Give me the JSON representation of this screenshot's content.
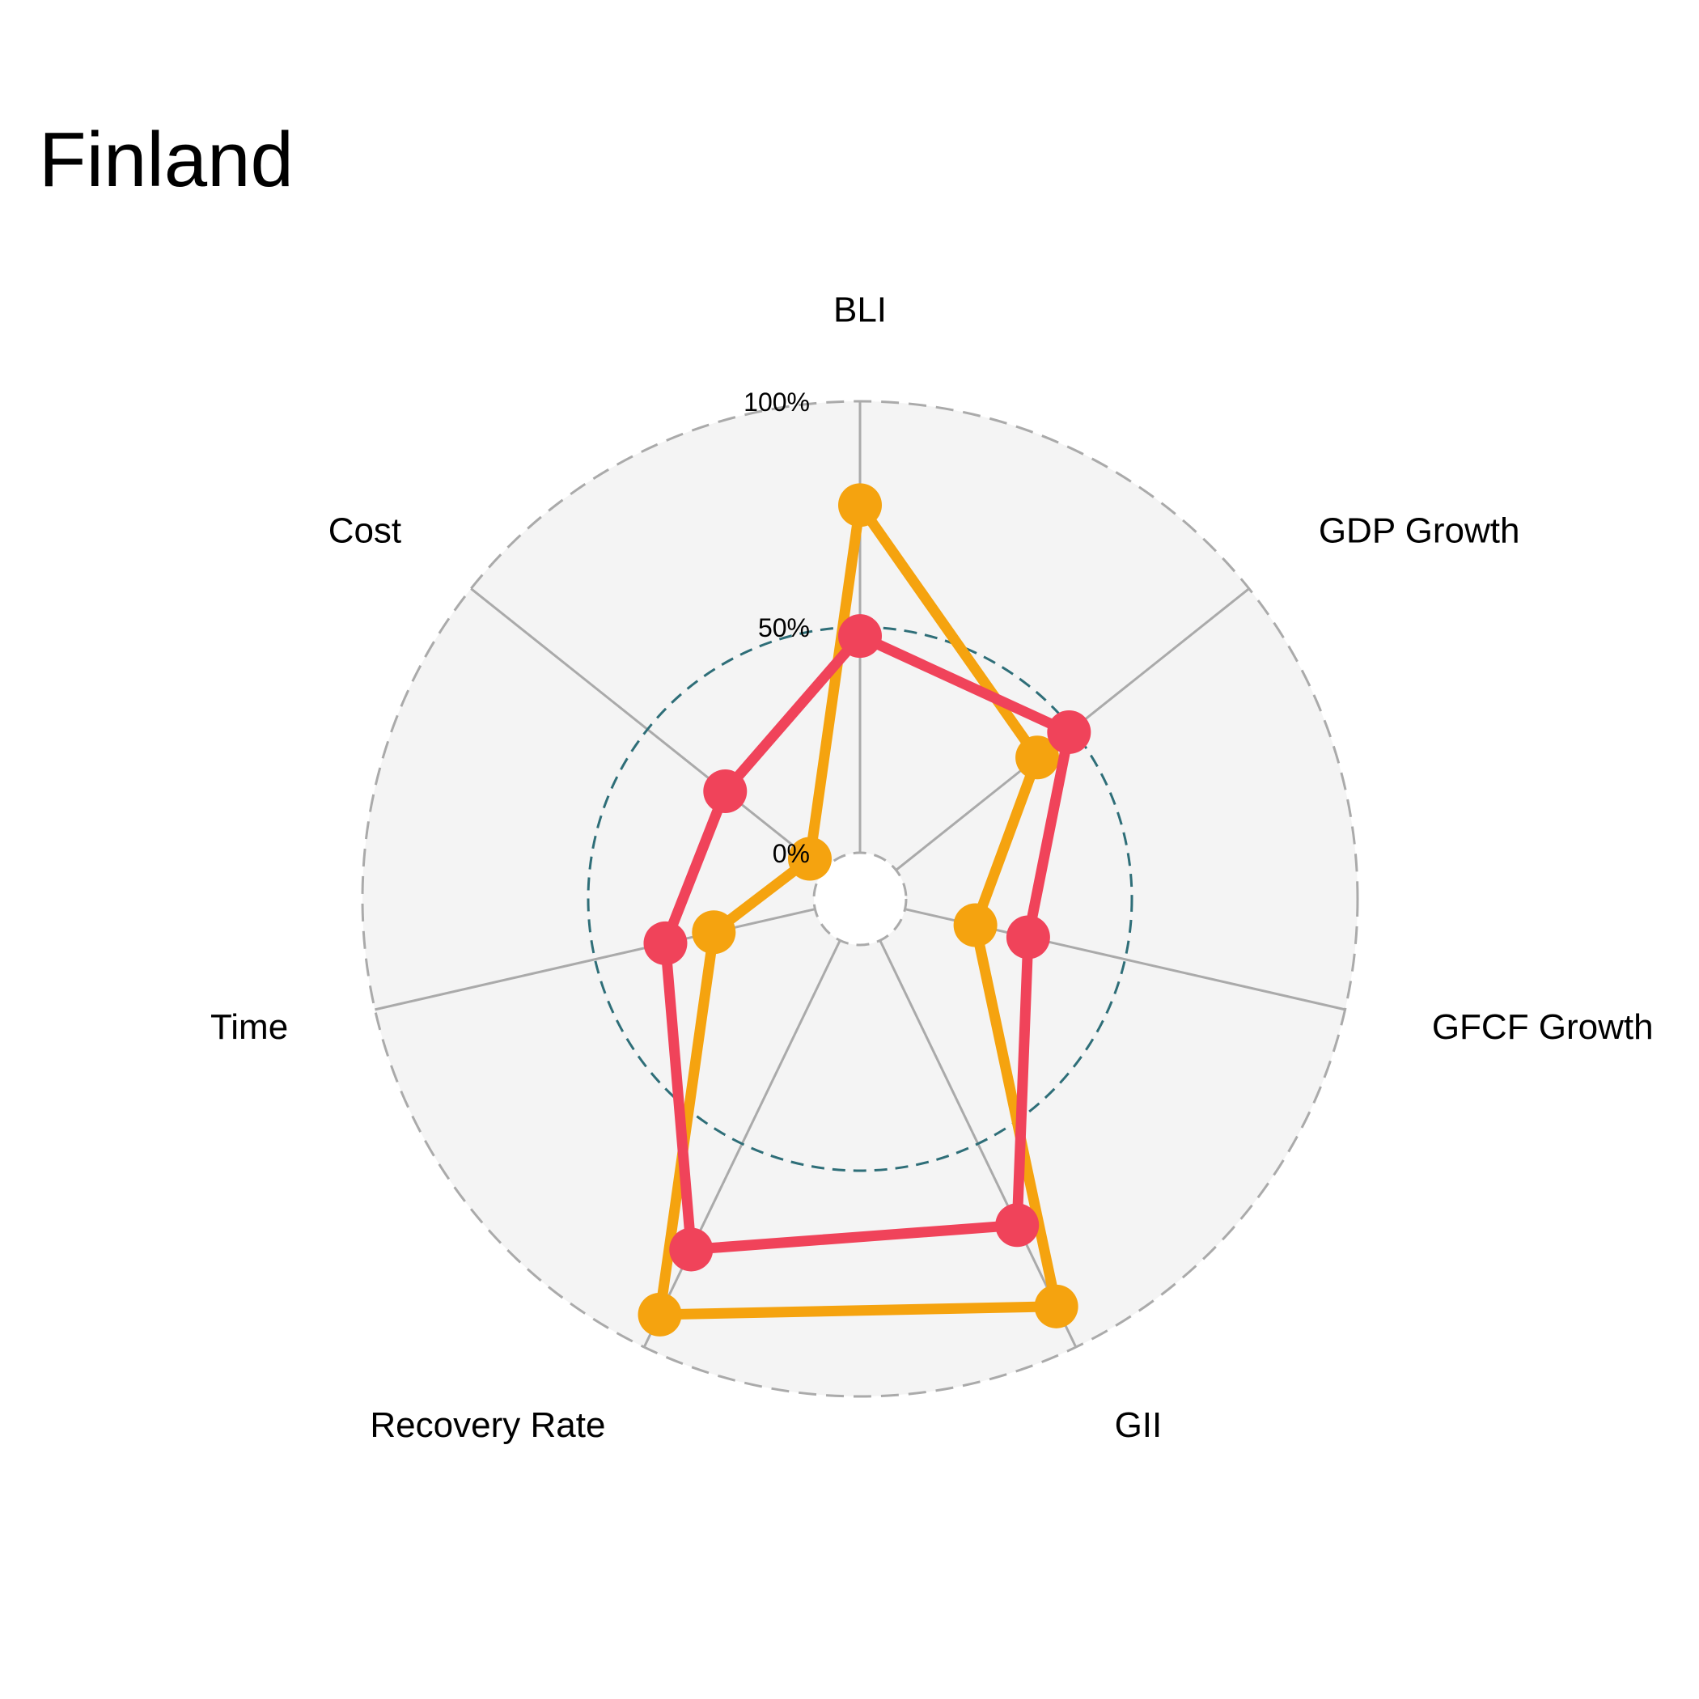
{
  "title": "Finland",
  "chart_data": {
    "type": "radar",
    "title": "Finland",
    "axes": [
      "BLI",
      "GDP Growth",
      "GFCF Growth",
      "GII",
      "Recovery Rate",
      "Time",
      "Cost"
    ],
    "rlim": [
      0,
      100
    ],
    "ticks": [
      {
        "value": 0,
        "label": "0%"
      },
      {
        "value": 50,
        "label": "50%"
      },
      {
        "value": 100,
        "label": "100%"
      }
    ],
    "series": [
      {
        "color": "#F5A30F",
        "values": [
          77,
          40,
          16,
          90,
          92,
          23,
          4
        ]
      },
      {
        "color": "#F0435A",
        "values": [
          48,
          49,
          28,
          70,
          76,
          34,
          28
        ]
      }
    ],
    "background": "#F4F4F4",
    "grid_color": "#AAAAAA",
    "mid_ring_color": "#2E6E78"
  }
}
